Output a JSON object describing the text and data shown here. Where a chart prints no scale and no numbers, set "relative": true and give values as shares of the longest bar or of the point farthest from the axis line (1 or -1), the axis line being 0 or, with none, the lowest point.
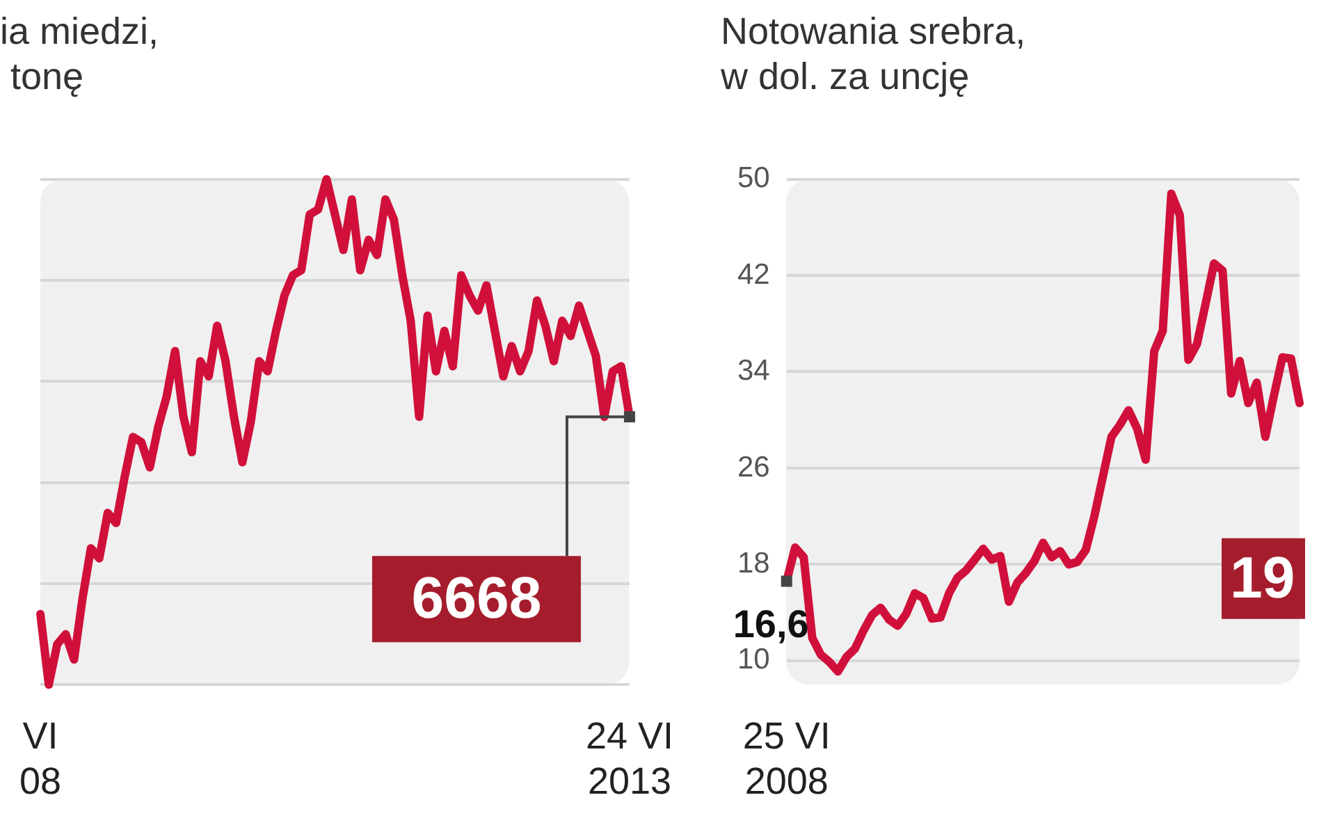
{
  "chart_data": [
    {
      "type": "line",
      "title": "ia miedzi,\n tonę",
      "relative": true,
      "tick_labels": "x",
      "grid": "y",
      "color": "#d0103a",
      "categories": [
        "VI\n08",
        null,
        null,
        null,
        null,
        null,
        null,
        null,
        null,
        null,
        null,
        null,
        null,
        null,
        null,
        null,
        null,
        null,
        null,
        null,
        null,
        null,
        null,
        null,
        null,
        null,
        null,
        null,
        null,
        null,
        null,
        null,
        null,
        null,
        null,
        null,
        null,
        null,
        null,
        null,
        null,
        null,
        null,
        null,
        null,
        null,
        null,
        null,
        null,
        null,
        null,
        null,
        null,
        null,
        null,
        null,
        null,
        null,
        null,
        null,
        null,
        null,
        null,
        null,
        null,
        null,
        null,
        null,
        null,
        null,
        "24 VI\n2013"
      ],
      "values": [
        0.14,
        0,
        0.08,
        0.1,
        0.05,
        0.17,
        0.27,
        0.25,
        0.34,
        0.32,
        0.41,
        0.49,
        0.48,
        0.43,
        0.51,
        0.57,
        0.66,
        0.53,
        0.46,
        0.64,
        0.61,
        0.71,
        0.64,
        0.53,
        0.44,
        0.52,
        0.64,
        0.62,
        0.7,
        0.77,
        0.81,
        0.82,
        0.93,
        0.94,
        1,
        0.93,
        0.86,
        0.96,
        0.82,
        0.88,
        0.85,
        0.96,
        0.92,
        0.81,
        0.72,
        0.53,
        0.73,
        0.62,
        0.7,
        0.63,
        0.81,
        0.77,
        0.74,
        0.79,
        0.7,
        0.61,
        0.67,
        0.62,
        0.66,
        0.76,
        0.71,
        0.64,
        0.72,
        0.69,
        0.75,
        0.7,
        0.65,
        0.53,
        0.62,
        0.63,
        0.53
      ],
      "annotations": [
        {
          "text": "6668",
          "x": "24 VI\n2013",
          "y": 0.53
        }
      ]
    },
    {
      "type": "line",
      "title": "Notowania srebra,\nw dol. za uncję",
      "grid": "y",
      "color": "#d0103a",
      "ylim": [
        8,
        50
      ],
      "yticks": [
        10,
        18,
        26,
        34,
        42,
        50
      ],
      "categories": [
        "25 VI\n2008",
        null,
        null,
        null,
        null,
        null,
        null,
        null,
        null,
        null,
        null,
        null,
        null,
        null,
        null,
        null,
        null,
        null,
        null,
        null,
        null,
        null,
        null,
        null,
        null,
        null,
        null,
        null,
        null,
        null,
        null,
        null,
        null,
        null,
        null,
        null,
        null,
        null,
        null,
        null,
        null,
        null,
        null,
        null,
        null,
        null,
        null,
        null,
        null,
        null,
        null,
        null,
        null,
        null,
        null,
        null,
        null,
        null,
        null,
        null,
        null
      ],
      "values": [
        16.6,
        19.4,
        18.6,
        11.9,
        10.5,
        9.9,
        9.1,
        10.3,
        11.0,
        12.5,
        13.8,
        14.4,
        13.4,
        12.9,
        13.9,
        15.6,
        15.2,
        13.5,
        13.6,
        15.6,
        16.9,
        17.5,
        18.4,
        19.3,
        18.4,
        18.7,
        14.9,
        16.5,
        17.3,
        18.3,
        19.8,
        18.6,
        19.1,
        18.0,
        18.2,
        19.2,
        22.0,
        25.3,
        28.6,
        29.6,
        30.8,
        29.3,
        26.7,
        35.7,
        37.4,
        48.8,
        47.0,
        35.0,
        36.3,
        39.6,
        43.0,
        42.4,
        32.2,
        34.9,
        31.4,
        33.1,
        28.6,
        32.0,
        35.2,
        35.1,
        31.4
      ],
      "annotations": [
        {
          "text": "16,6",
          "x": "25 VI\n2008",
          "y": 16.6
        },
        "19"
      ]
    }
  ]
}
